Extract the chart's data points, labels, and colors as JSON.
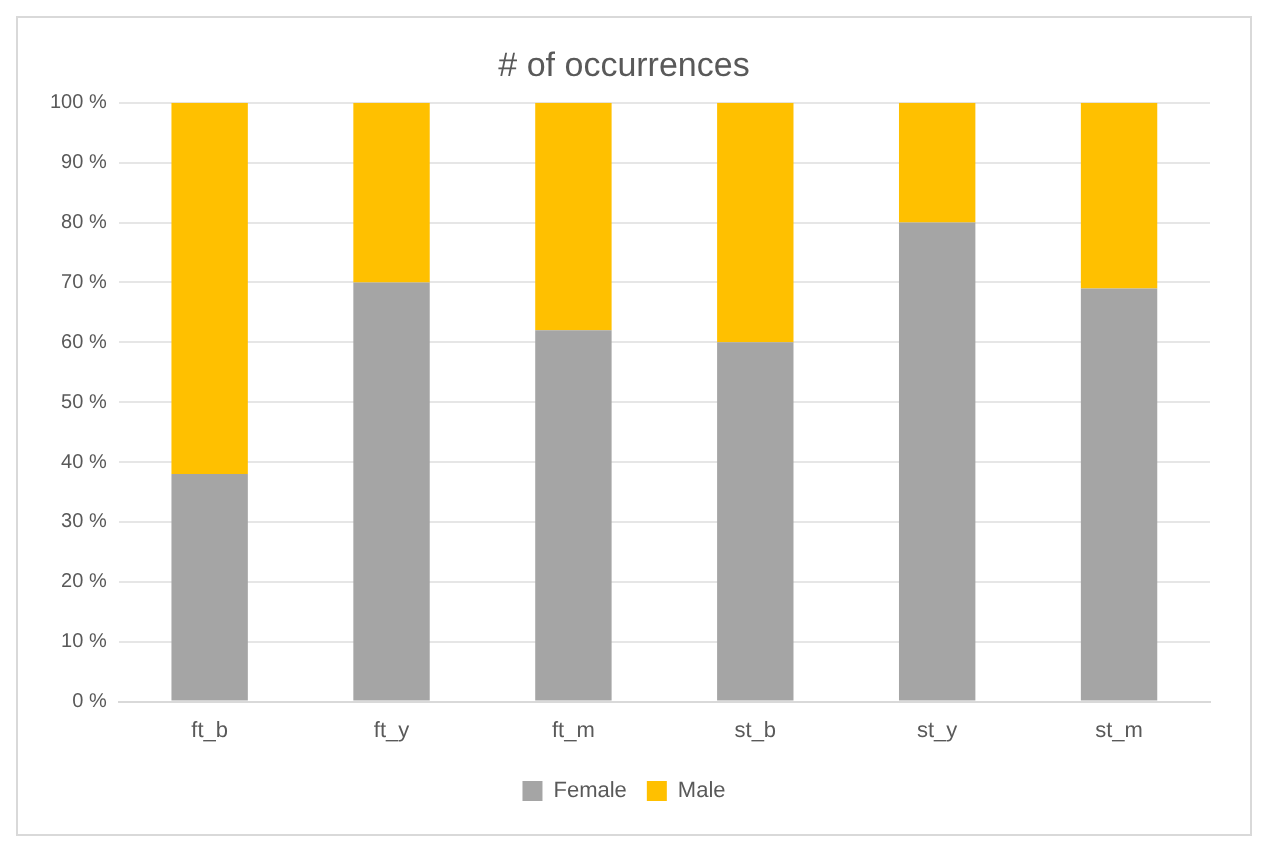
{
  "chart_data": {
    "type": "bar",
    "title": "# of occurrences",
    "stacked": true,
    "categories": [
      "ft_b",
      "ft_y",
      "ft_m",
      "st_b",
      "st_y",
      "st_m"
    ],
    "series": [
      {
        "name": "Female",
        "color": "#a5a5a5",
        "values": [
          38,
          70,
          62,
          60,
          80,
          69
        ]
      },
      {
        "name": "Male",
        "color": "#ffc000",
        "values": [
          62,
          30,
          38,
          40,
          20,
          31
        ]
      }
    ],
    "ylim": [
      0,
      100
    ],
    "yticks": [
      {
        "value": 0,
        "label": "0 %"
      },
      {
        "value": 10,
        "label": "10 %"
      },
      {
        "value": 20,
        "label": "20 %"
      },
      {
        "value": 30,
        "label": "30 %"
      },
      {
        "value": 40,
        "label": "40 %"
      },
      {
        "value": 50,
        "label": "50 %"
      },
      {
        "value": 60,
        "label": "60 %"
      },
      {
        "value": 70,
        "label": "70 %"
      },
      {
        "value": 80,
        "label": "80 %"
      },
      {
        "value": 90,
        "label": "90 %"
      },
      {
        "value": 100,
        "label": "100 %"
      }
    ],
    "grid": "y",
    "legend": "bottom"
  }
}
